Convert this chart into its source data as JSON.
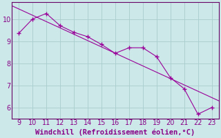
{
  "x": [
    9,
    10,
    11,
    12,
    13,
    14,
    15,
    16,
    17,
    18,
    19,
    20,
    21,
    22,
    23
  ],
  "y": [
    9.35,
    10.0,
    10.25,
    9.7,
    9.4,
    9.2,
    8.85,
    8.45,
    8.7,
    8.7,
    8.3,
    7.35,
    6.85,
    5.7,
    6.0
  ],
  "line_color": "#990099",
  "marker": "+",
  "marker_size": 4,
  "bg_color": "#cce8e8",
  "grid_color": "#aacccc",
  "axis_color": "#660066",
  "tick_color": "#880088",
  "xlabel": "Windchill (Refroidissement éolien,°C)",
  "xlim": [
    8.5,
    23.5
  ],
  "ylim": [
    5.5,
    10.75
  ],
  "xticks": [
    9,
    10,
    11,
    12,
    13,
    14,
    15,
    16,
    17,
    18,
    19,
    20,
    21,
    22,
    23
  ],
  "yticks": [
    6,
    7,
    8,
    9,
    10
  ],
  "font_size": 7,
  "xlabel_font_size": 7.5
}
